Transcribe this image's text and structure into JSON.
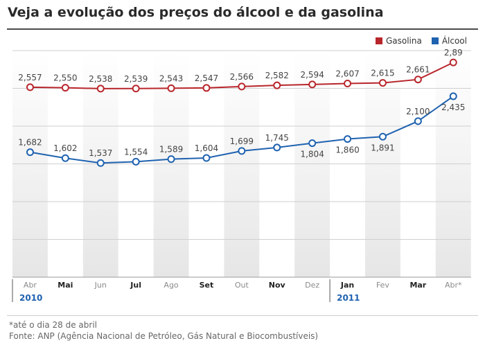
{
  "header": {
    "title": "Veja a evolução dos preços do álcool e da gasolina"
  },
  "legend": [
    {
      "label": "Gasolina",
      "color": "#b8262b"
    },
    {
      "label": "Álcool",
      "color": "#1f62b0"
    }
  ],
  "chart_data": {
    "type": "line",
    "categories": [
      "Abr",
      "Mai",
      "Jun",
      "Jul",
      "Ago",
      "Set",
      "Out",
      "Nov",
      "Dez",
      "Jan",
      "Fev",
      "Mar",
      "Abr*"
    ],
    "bold_categories": [
      "Mai",
      "Jul",
      "Set",
      "Nov",
      "Jan",
      "Mar"
    ],
    "year_labels": [
      {
        "label": "2010",
        "start": "Abr"
      },
      {
        "label": "2011",
        "start": "Jan"
      }
    ],
    "series": [
      {
        "name": "Gasolina",
        "color": "#b8262b",
        "values": [
          2.557,
          2.55,
          2.538,
          2.539,
          2.543,
          2.547,
          2.566,
          2.582,
          2.594,
          2.607,
          2.615,
          2.661,
          2.89
        ],
        "labels": [
          "2,557",
          "2,550",
          "2,538",
          "2,539",
          "2,543",
          "2,547",
          "2,566",
          "2,582",
          "2,594",
          "2,607",
          "2,615",
          "2,661",
          "2,89"
        ],
        "label_pos": [
          "above",
          "above",
          "above",
          "above",
          "above",
          "above",
          "above",
          "above",
          "above",
          "above",
          "above",
          "above",
          "above"
        ]
      },
      {
        "name": "Álcool",
        "color": "#1f62b0",
        "values": [
          1.682,
          1.602,
          1.537,
          1.554,
          1.589,
          1.604,
          1.699,
          1.745,
          1.804,
          1.86,
          1.891,
          2.1,
          2.435
        ],
        "labels": [
          "1,682",
          "1,602",
          "1,537",
          "1,554",
          "1,589",
          "1,604",
          "1,699",
          "1,745",
          "1,804",
          "1,860",
          "1,891",
          "2,100",
          "2,435"
        ],
        "label_pos": [
          "above",
          "above",
          "above",
          "above",
          "above",
          "above",
          "above",
          "above",
          "below",
          "below",
          "below",
          "above",
          "below"
        ]
      }
    ],
    "ylim": [
      0,
      3.05
    ],
    "grid": true,
    "legend_position": "top-right"
  },
  "footer": {
    "note": "*até o dia 28 de abril",
    "source": "Fonte: ANP (Agência Nacional de Petróleo, Gás Natural e Biocombustíveis)"
  }
}
